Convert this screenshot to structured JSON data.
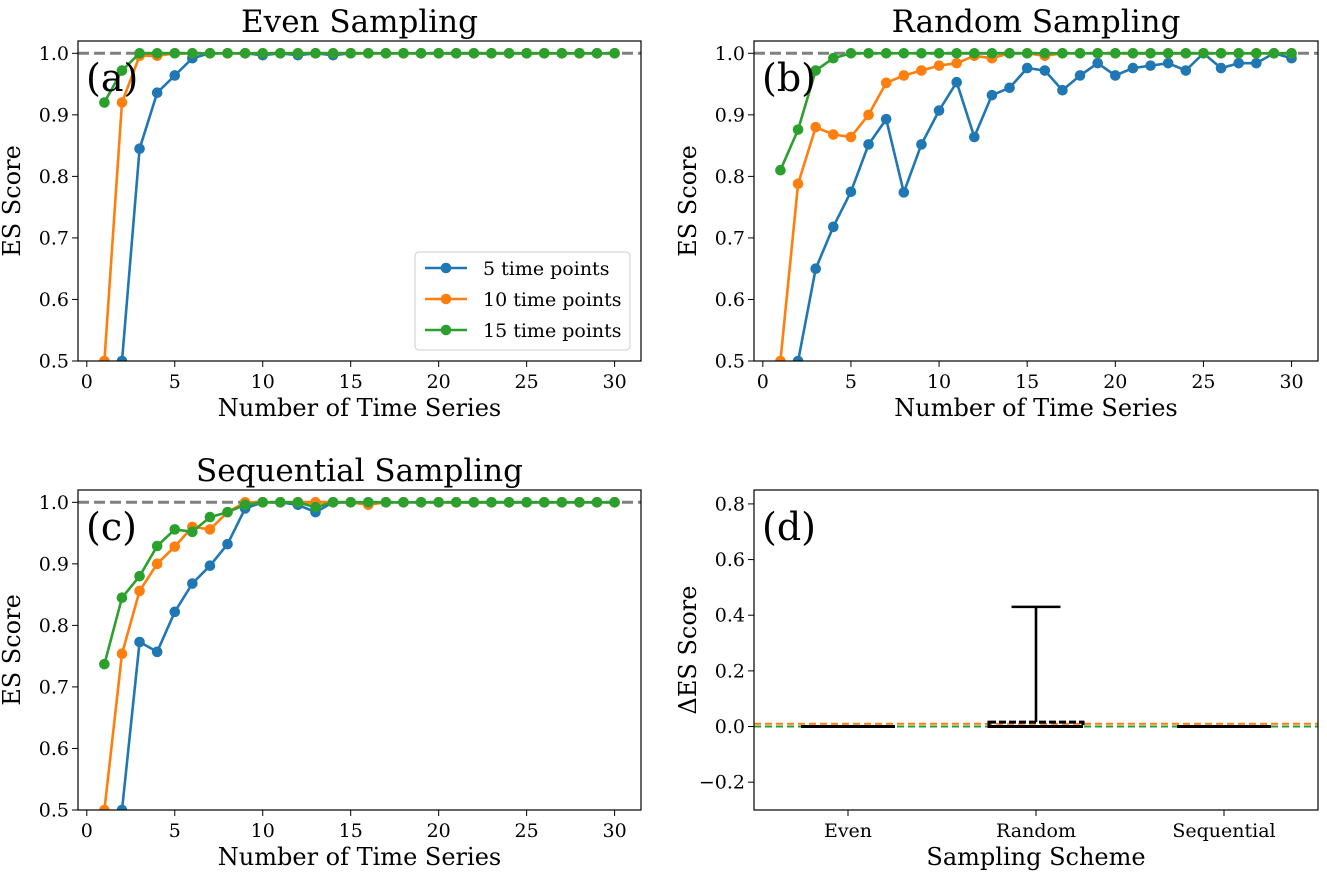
{
  "chart_data": [
    {
      "type": "line",
      "panel_label": "(a)",
      "title": "Even Sampling",
      "xlabel": "Number of Time Series",
      "ylabel": "ES Score",
      "xlim": [
        -0.5,
        31.5
      ],
      "ylim": [
        0.5,
        1.02
      ],
      "xticks": [
        0,
        5,
        10,
        15,
        20,
        25,
        30
      ],
      "yticks": [
        0.5,
        0.6,
        0.7,
        0.8,
        0.9,
        1.0
      ],
      "reference_line": 1.0,
      "legend": "lower-right",
      "series": [
        {
          "name": "5 time points",
          "color": "#1f77b4",
          "x": [
            2,
            3,
            4,
            5,
            6,
            7,
            8,
            9,
            10,
            11,
            12,
            13,
            14,
            15,
            16,
            17,
            18,
            19,
            20,
            21,
            22,
            23,
            24,
            25,
            26,
            27,
            28,
            29,
            30
          ],
          "values": [
            0.5,
            0.845,
            0.936,
            0.964,
            0.992,
            1.0,
            1.0,
            1.0,
            0.997,
            1.0,
            0.997,
            1.0,
            0.997,
            1.0,
            1.0,
            1.0,
            1.0,
            1.0,
            1.0,
            1.0,
            1.0,
            1.0,
            1.0,
            1.0,
            1.0,
            1.0,
            1.0,
            1.0,
            1.0
          ]
        },
        {
          "name": "10 time points",
          "color": "#ff7f0e",
          "x": [
            1,
            2,
            3,
            4,
            5,
            6,
            7,
            8,
            9,
            10,
            11,
            12,
            13,
            14,
            15,
            16,
            17,
            18,
            19,
            20,
            21,
            22,
            23,
            24,
            25,
            26,
            27,
            28,
            29,
            30
          ],
          "values": [
            0.5,
            0.92,
            0.996,
            0.996,
            1.0,
            1.0,
            1.0,
            1.0,
            1.0,
            1.0,
            1.0,
            1.0,
            1.0,
            1.0,
            1.0,
            1.0,
            1.0,
            1.0,
            1.0,
            1.0,
            1.0,
            1.0,
            1.0,
            1.0,
            1.0,
            1.0,
            1.0,
            1.0,
            1.0,
            1.0
          ]
        },
        {
          "name": "15 time points",
          "color": "#2ca02c",
          "x": [
            1,
            2,
            3,
            4,
            5,
            6,
            7,
            8,
            9,
            10,
            11,
            12,
            13,
            14,
            15,
            16,
            17,
            18,
            19,
            20,
            21,
            22,
            23,
            24,
            25,
            26,
            27,
            28,
            29,
            30
          ],
          "values": [
            0.92,
            0.972,
            1.0,
            1.0,
            1.0,
            1.0,
            1.0,
            1.0,
            1.0,
            1.0,
            1.0,
            1.0,
            1.0,
            1.0,
            1.0,
            1.0,
            1.0,
            1.0,
            1.0,
            1.0,
            1.0,
            1.0,
            1.0,
            1.0,
            1.0,
            1.0,
            1.0,
            1.0,
            1.0,
            1.0
          ]
        }
      ]
    },
    {
      "type": "line",
      "panel_label": "(b)",
      "title": "Random Sampling",
      "xlabel": "Number of Time Series",
      "ylabel": "ES Score",
      "xlim": [
        -0.5,
        31.5
      ],
      "ylim": [
        0.5,
        1.02
      ],
      "xticks": [
        0,
        5,
        10,
        15,
        20,
        25,
        30
      ],
      "yticks": [
        0.5,
        0.6,
        0.7,
        0.8,
        0.9,
        1.0
      ],
      "reference_line": 1.0,
      "series": [
        {
          "name": "5 time points",
          "color": "#1f77b4",
          "x": [
            2,
            3,
            4,
            5,
            6,
            7,
            8,
            9,
            10,
            11,
            12,
            13,
            14,
            15,
            16,
            17,
            18,
            19,
            20,
            21,
            22,
            23,
            24,
            25,
            26,
            27,
            28,
            29,
            30
          ],
          "values": [
            0.5,
            0.65,
            0.718,
            0.775,
            0.852,
            0.893,
            0.774,
            0.852,
            0.907,
            0.953,
            0.864,
            0.932,
            0.944,
            0.976,
            0.972,
            0.94,
            0.964,
            0.984,
            0.964,
            0.976,
            0.98,
            0.984,
            0.972,
            1.0,
            0.976,
            0.984,
            0.984,
            1.0,
            0.992
          ]
        },
        {
          "name": "10 time points",
          "color": "#ff7f0e",
          "x": [
            1,
            2,
            3,
            4,
            5,
            6,
            7,
            8,
            9,
            10,
            11,
            12,
            13,
            14,
            15,
            16,
            17,
            18,
            19,
            20,
            21,
            22,
            23,
            24,
            25,
            26,
            27,
            28,
            29,
            30
          ],
          "values": [
            0.5,
            0.788,
            0.88,
            0.868,
            0.864,
            0.9,
            0.952,
            0.964,
            0.972,
            0.98,
            0.984,
            0.996,
            0.992,
            1.0,
            1.0,
            0.996,
            1.0,
            1.0,
            1.0,
            1.0,
            1.0,
            1.0,
            1.0,
            1.0,
            1.0,
            1.0,
            1.0,
            1.0,
            1.0,
            1.0
          ]
        },
        {
          "name": "15 time points",
          "color": "#2ca02c",
          "x": [
            1,
            2,
            3,
            4,
            5,
            6,
            7,
            8,
            9,
            10,
            11,
            12,
            13,
            14,
            15,
            16,
            17,
            18,
            19,
            20,
            21,
            22,
            23,
            24,
            25,
            26,
            27,
            28,
            29,
            30
          ],
          "values": [
            0.81,
            0.876,
            0.972,
            0.992,
            1.0,
            1.0,
            1.0,
            1.0,
            1.0,
            1.0,
            1.0,
            1.0,
            1.0,
            1.0,
            1.0,
            1.0,
            1.0,
            1.0,
            1.0,
            1.0,
            1.0,
            1.0,
            1.0,
            1.0,
            1.0,
            1.0,
            1.0,
            1.0,
            1.0,
            1.0
          ]
        }
      ]
    },
    {
      "type": "line",
      "panel_label": "(c)",
      "title": "Sequential Sampling",
      "xlabel": "Number of Time Series",
      "ylabel": "ES Score",
      "xlim": [
        -0.5,
        31.5
      ],
      "ylim": [
        0.5,
        1.02
      ],
      "xticks": [
        0,
        5,
        10,
        15,
        20,
        25,
        30
      ],
      "yticks": [
        0.5,
        0.6,
        0.7,
        0.8,
        0.9,
        1.0
      ],
      "reference_line": 1.0,
      "series": [
        {
          "name": "5 time points",
          "color": "#1f77b4",
          "x": [
            2,
            3,
            4,
            5,
            6,
            7,
            8,
            9,
            10,
            11,
            12,
            13,
            14,
            15,
            16,
            17,
            18,
            19,
            20,
            21,
            22,
            23,
            24,
            25,
            26,
            27,
            28,
            29,
            30
          ],
          "values": [
            0.5,
            0.773,
            0.757,
            0.822,
            0.868,
            0.897,
            0.932,
            0.99,
            1.0,
            1.0,
            0.996,
            0.984,
            1.0,
            1.0,
            1.0,
            1.0,
            1.0,
            1.0,
            1.0,
            1.0,
            1.0,
            1.0,
            1.0,
            1.0,
            1.0,
            1.0,
            1.0,
            1.0,
            1.0
          ]
        },
        {
          "name": "10 time points",
          "color": "#ff7f0e",
          "x": [
            1,
            2,
            3,
            4,
            5,
            6,
            7,
            8,
            9,
            10,
            11,
            12,
            13,
            14,
            15,
            16,
            17,
            18,
            19,
            20,
            21,
            22,
            23,
            24,
            25,
            26,
            27,
            28,
            29,
            30
          ],
          "values": [
            0.5,
            0.754,
            0.856,
            0.9,
            0.928,
            0.96,
            0.956,
            0.984,
            1.0,
            1.0,
            1.0,
            1.0,
            1.0,
            1.0,
            1.0,
            0.996,
            1.0,
            1.0,
            1.0,
            1.0,
            1.0,
            1.0,
            1.0,
            1.0,
            1.0,
            1.0,
            1.0,
            1.0,
            1.0,
            1.0
          ]
        },
        {
          "name": "15 time points",
          "color": "#2ca02c",
          "x": [
            1,
            2,
            3,
            4,
            5,
            6,
            7,
            8,
            9,
            10,
            11,
            12,
            13,
            14,
            15,
            16,
            17,
            18,
            19,
            20,
            21,
            22,
            23,
            24,
            25,
            26,
            27,
            28,
            29,
            30
          ],
          "values": [
            0.737,
            0.845,
            0.88,
            0.929,
            0.956,
            0.952,
            0.976,
            0.984,
            0.996,
            1.0,
            1.0,
            1.0,
            0.992,
            1.0,
            1.0,
            1.0,
            1.0,
            1.0,
            1.0,
            1.0,
            1.0,
            1.0,
            1.0,
            1.0,
            1.0,
            1.0,
            1.0,
            1.0,
            1.0,
            1.0
          ]
        }
      ]
    },
    {
      "type": "box",
      "panel_label": "(d)",
      "xlabel": "Sampling Scheme",
      "ylabel": "ΔES Score",
      "ylim": [
        -0.3,
        0.85
      ],
      "yticks": [
        -0.2,
        0.0,
        0.2,
        0.4,
        0.6,
        0.8
      ],
      "ytick_labels": [
        "−0.2",
        "0.0",
        "0.2",
        "0.4",
        "0.6",
        "0.8"
      ],
      "categories": [
        "Even",
        "Random",
        "Sequential"
      ],
      "boxes": [
        {
          "category": "Even",
          "q1": 0.0,
          "median": 0.0,
          "q3": 0.0,
          "whisker_low": 0.0,
          "whisker_high": 0.0
        },
        {
          "category": "Random",
          "q1": 0.0,
          "median": 0.0,
          "q3": 0.016,
          "whisker_low": 0.0,
          "whisker_high": 0.43
        },
        {
          "category": "Sequential",
          "q1": 0.0,
          "median": 0.0,
          "q3": 0.0,
          "whisker_low": 0.0,
          "whisker_high": 0.0
        }
      ],
      "reference_lines": [
        {
          "value": 0.01,
          "color": "#ff7f0e"
        },
        {
          "value": 0.0,
          "color": "#2ca02c"
        }
      ]
    }
  ]
}
